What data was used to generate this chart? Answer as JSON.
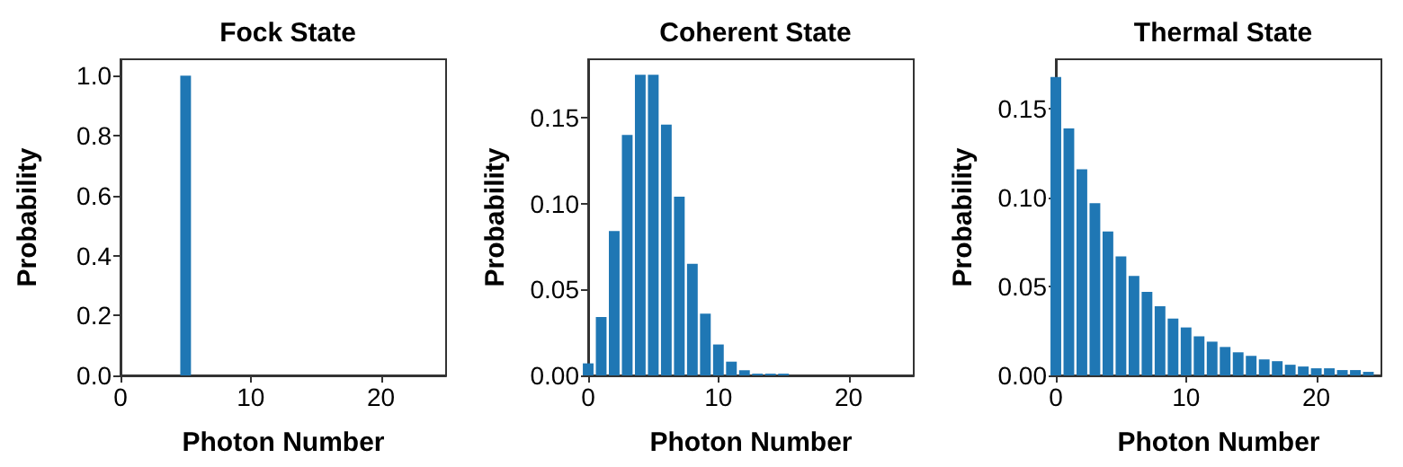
{
  "chart_data": [
    {
      "type": "bar",
      "title": "Fock State",
      "xlabel": "Photon Number",
      "ylabel": "Probability",
      "x": [
        5
      ],
      "values": [
        1.0
      ],
      "color": "#1f77b4",
      "xlim": [
        0,
        25
      ],
      "xticks": [
        0,
        10,
        20
      ],
      "ylim": [
        0,
        1.055
      ],
      "yticks": [
        {
          "value": 0,
          "label": "0.0"
        },
        {
          "value": 0.2,
          "label": "0.2"
        },
        {
          "value": 0.4,
          "label": "0.4"
        },
        {
          "value": 0.6,
          "label": "0.6"
        },
        {
          "value": 0.8,
          "label": "0.8"
        },
        {
          "value": 1.0,
          "label": "1.0"
        }
      ]
    },
    {
      "type": "bar",
      "title": "Coherent State",
      "xlabel": "Photon Number",
      "ylabel": "Probability",
      "x": [
        0,
        1,
        2,
        3,
        4,
        5,
        6,
        7,
        8,
        9,
        10,
        11,
        12,
        13,
        14,
        15
      ],
      "values": [
        0.007,
        0.034,
        0.084,
        0.14,
        0.175,
        0.175,
        0.146,
        0.104,
        0.065,
        0.036,
        0.018,
        0.008,
        0.003,
        0.001,
        0.001,
        0.001
      ],
      "color": "#1f77b4",
      "xlim": [
        0,
        25
      ],
      "xticks": [
        0,
        10,
        20
      ],
      "ylim": [
        0,
        0.184
      ],
      "yticks": [
        {
          "value": 0,
          "label": "0.00"
        },
        {
          "value": 0.05,
          "label": "0.05"
        },
        {
          "value": 0.1,
          "label": "0.10"
        },
        {
          "value": 0.15,
          "label": "0.15"
        }
      ]
    },
    {
      "type": "bar",
      "title": "Thermal State",
      "xlabel": "Photon Number",
      "ylabel": "Probability",
      "x": [
        0,
        1,
        2,
        3,
        4,
        5,
        6,
        7,
        8,
        9,
        10,
        11,
        12,
        13,
        14,
        15,
        16,
        17,
        18,
        19,
        20,
        21,
        22,
        23,
        24
      ],
      "values": [
        0.168,
        0.139,
        0.116,
        0.097,
        0.081,
        0.067,
        0.056,
        0.047,
        0.039,
        0.032,
        0.027,
        0.022,
        0.019,
        0.016,
        0.013,
        0.011,
        0.009,
        0.008,
        0.006,
        0.005,
        0.004,
        0.004,
        0.003,
        0.003,
        0.002
      ],
      "color": "#1f77b4",
      "xlim": [
        0,
        25
      ],
      "xticks": [
        0,
        10,
        20
      ],
      "ylim": [
        0,
        0.178
      ],
      "yticks": [
        {
          "value": 0,
          "label": "0.00"
        },
        {
          "value": 0.05,
          "label": "0.05"
        },
        {
          "value": 0.1,
          "label": "0.10"
        },
        {
          "value": 0.15,
          "label": "0.15"
        }
      ]
    }
  ]
}
